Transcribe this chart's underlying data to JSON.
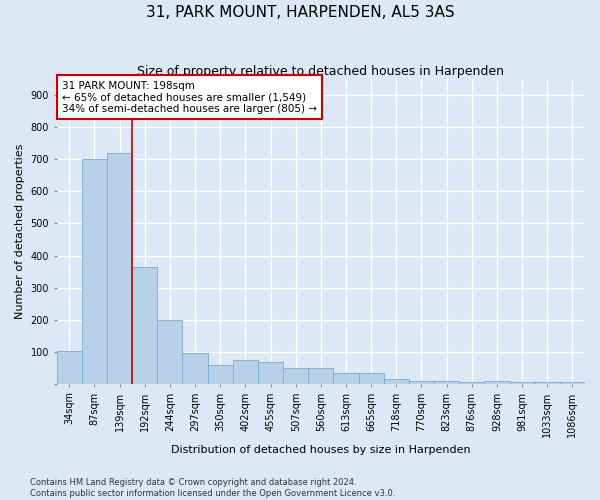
{
  "title": "31, PARK MOUNT, HARPENDEN, AL5 3AS",
  "subtitle": "Size of property relative to detached houses in Harpenden",
  "xlabel": "Distribution of detached houses by size in Harpenden",
  "ylabel": "Number of detached properties",
  "categories": [
    "34sqm",
    "87sqm",
    "139sqm",
    "192sqm",
    "244sqm",
    "297sqm",
    "350sqm",
    "402sqm",
    "455sqm",
    "507sqm",
    "560sqm",
    "613sqm",
    "665sqm",
    "718sqm",
    "770sqm",
    "823sqm",
    "876sqm",
    "928sqm",
    "981sqm",
    "1033sqm",
    "1086sqm"
  ],
  "values": [
    103,
    700,
    720,
    365,
    200,
    97,
    60,
    75,
    67,
    48,
    48,
    35,
    35,
    15,
    10,
    10,
    5,
    10,
    5,
    5,
    5
  ],
  "bar_color": "#b8d0e8",
  "bar_edge_color": "#7aaace",
  "vline_x": 2.5,
  "annotation_text": "31 PARK MOUNT: 198sqm\n← 65% of detached houses are smaller (1,549)\n34% of semi-detached houses are larger (805) →",
  "annotation_box_color": "#ffffff",
  "annotation_box_edge_color": "#cc0000",
  "vline_color": "#cc0000",
  "footer_text": "Contains HM Land Registry data © Crown copyright and database right 2024.\nContains public sector information licensed under the Open Government Licence v3.0.",
  "ylim": [
    0,
    950
  ],
  "yticks": [
    0,
    100,
    200,
    300,
    400,
    500,
    600,
    700,
    800,
    900
  ],
  "background_color": "#dce8f5",
  "grid_color": "#ffffff",
  "title_fontsize": 11,
  "subtitle_fontsize": 9,
  "xlabel_fontsize": 8,
  "ylabel_fontsize": 8,
  "tick_fontsize": 7,
  "footer_fontsize": 6
}
